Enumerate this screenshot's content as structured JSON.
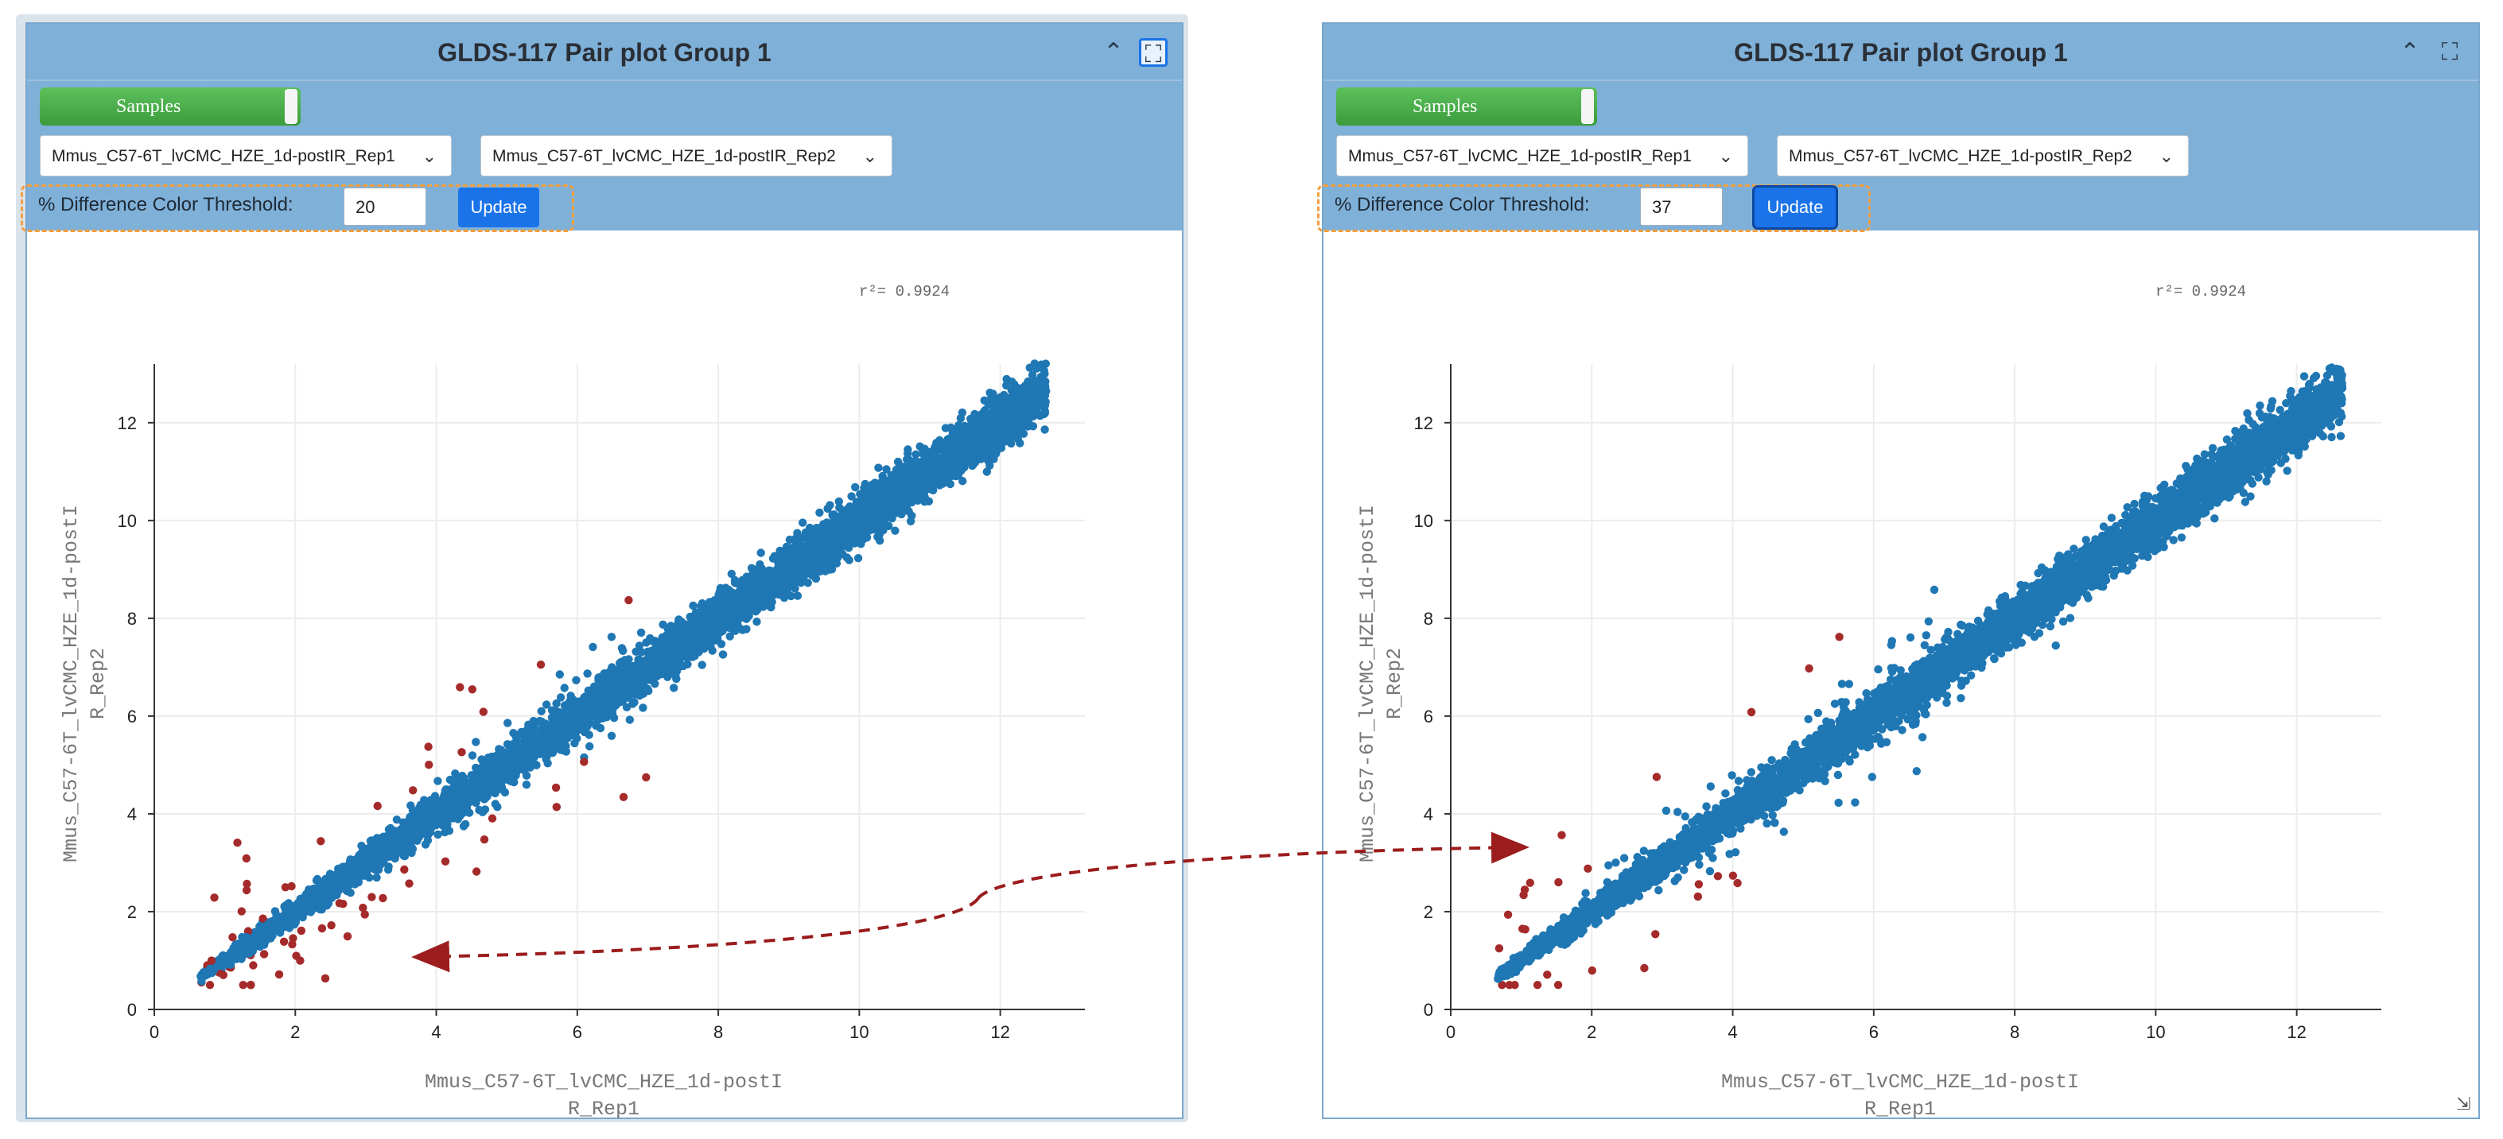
{
  "panels": [
    {
      "title": "GLDS-117 Pair plot Group 1",
      "samples_label": "Samples",
      "select_x": "Mmus_C57-6T_lvCMC_HZE_1d-postIR_Rep1",
      "select_y": "Mmus_C57-6T_lvCMC_HZE_1d-postIR_Rep2",
      "threshold_label": "% Difference Color Threshold:",
      "threshold_value": "20",
      "update_label": "Update",
      "collapse_icon": "^",
      "r2_label": "r²= 0.9924",
      "xlabel_line1": "Mmus_C57-6T_lvCMC_HZE_1d-postI",
      "xlabel_line2": "R_Rep1",
      "ylabel_line1": "Mmus_C57-6T_lvCMC_HZE_1d-postI",
      "ylabel_line2": "R_Rep2",
      "expand_active": true,
      "outlier_fraction": "high"
    },
    {
      "title": "GLDS-117 Pair plot Group 1",
      "samples_label": "Samples",
      "select_x": "Mmus_C57-6T_lvCMC_HZE_1d-postIR_Rep1",
      "select_y": "Mmus_C57-6T_lvCMC_HZE_1d-postIR_Rep2",
      "threshold_label": "% Difference Color Threshold:",
      "threshold_value": "37",
      "update_label": "Update",
      "collapse_icon": "^",
      "r2_label": "r²= 0.9924",
      "xlabel_line1": "Mmus_C57-6T_lvCMC_HZE_1d-postI",
      "xlabel_line2": "R_Rep1",
      "ylabel_line1": "Mmus_C57-6T_lvCMC_HZE_1d-postI",
      "ylabel_line2": "R_Rep2",
      "expand_active": false,
      "outlier_fraction": "low"
    }
  ],
  "chart_data": [
    {
      "type": "scatter",
      "title": "",
      "xlabel": "Mmus_C57-6T_lvCMC_HZE_1d-postIR_Rep1",
      "ylabel": "Mmus_C57-6T_lvCMC_HZE_1d-postIR_Rep2",
      "xlim": [
        0,
        13.2
      ],
      "ylim": [
        0,
        13.2
      ],
      "x_ticks": [
        0,
        2,
        4,
        6,
        8,
        10,
        12
      ],
      "y_ticks": [
        0,
        2,
        4,
        6,
        8,
        10,
        12
      ],
      "r_squared": 0.9924,
      "threshold_percent": 20,
      "grid": true,
      "series": [
        {
          "color": "#1f77b4",
          "description_range": [
            0.6,
            12.7
          ]
        },
        {
          "color": "#a52a2a",
          "description_range": [
            0.7,
            9.0
          ]
        }
      ]
    },
    {
      "type": "scatter",
      "title": "",
      "xlabel": "Mmus_C57-6T_lvCMC_HZE_1d-postIR_Rep1",
      "ylabel": "Mmus_C57-6T_lvCMC_HZE_1d-postIR_Rep2",
      "xlim": [
        0,
        13.2
      ],
      "ylim": [
        0,
        13.2
      ],
      "x_ticks": [
        0,
        2,
        4,
        6,
        8,
        10,
        12
      ],
      "y_ticks": [
        0,
        2,
        4,
        6,
        8,
        10,
        12
      ],
      "r_squared": 0.9924,
      "threshold_percent": 37,
      "grid": true,
      "series": [
        {
          "color": "#1f77b4",
          "description_range": [
            0.6,
            12.7
          ]
        },
        {
          "color": "#a52a2a",
          "description_range": [
            0.7,
            5.3
          ]
        }
      ]
    }
  ],
  "colors": {
    "header": "#7fb0d8",
    "accent": "#1a73e8",
    "inlier": "#1f77b4",
    "outlier": "#a52a2a",
    "arrow": "#9b1c1c"
  }
}
